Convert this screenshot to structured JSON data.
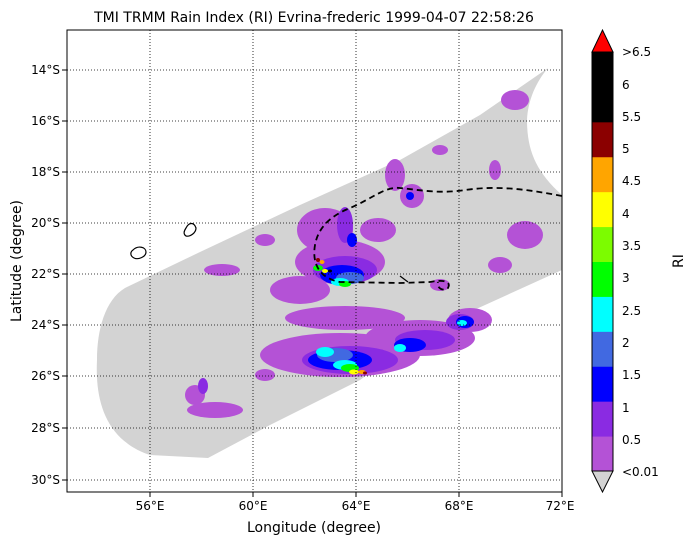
{
  "title": "TMI TRMM Rain Index (RI) Evrina-frederic 1999-04-07 22:58:26",
  "xlabel": "Longitude (degree)",
  "ylabel": "Latitude (degree)",
  "x_ticks": [
    "56°E",
    "60°E",
    "64°E",
    "68°E",
    "72°E"
  ],
  "y_ticks": [
    "14°S",
    "16°S",
    "18°S",
    "20°S",
    "22°S",
    "24°S",
    "26°S",
    "28°S",
    "30°S"
  ],
  "colorbar": {
    "label": "RI",
    "tick_labels": [
      ">6.5",
      "6",
      "5.5",
      "5",
      "4.5",
      "4",
      "3.5",
      "3",
      "2.5",
      "2",
      "1.5",
      "1",
      "0.5",
      "<0.01"
    ],
    "colors": [
      "#b452d6",
      "#8a2be2",
      "#0000ff",
      "#4169e1",
      "#00ffff",
      "#00ff00",
      "#7cfc00",
      "#ffff00",
      "#ffa500",
      "#8b0000",
      "#000000",
      "#000000"
    ],
    "over_color": "#ff0000",
    "under_color": "#d3d3d3"
  },
  "swath_color": "#d3d3d3"
}
